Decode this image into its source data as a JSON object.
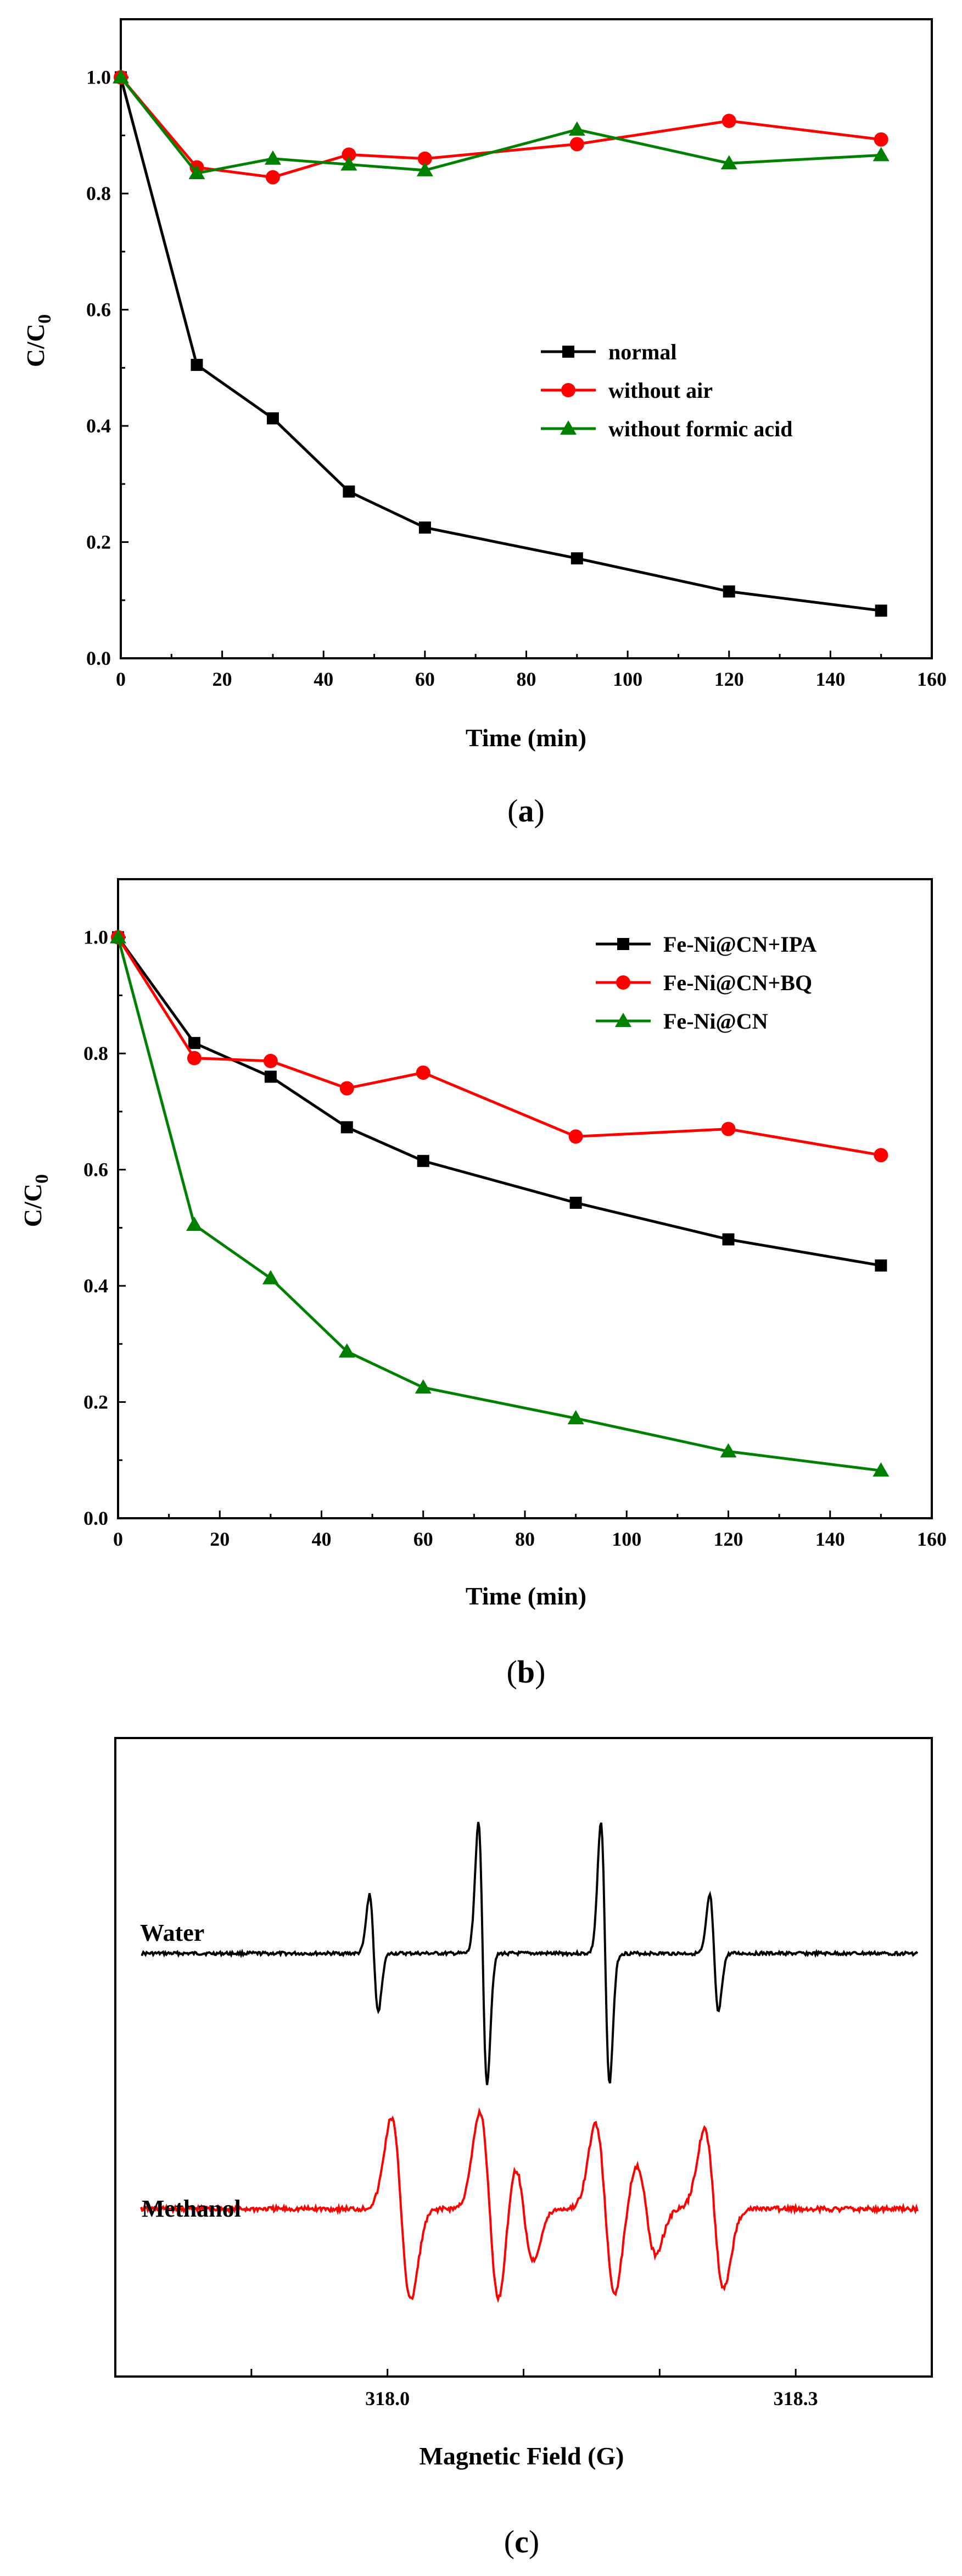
{
  "chart_data": [
    {
      "panel": "a",
      "type": "line",
      "caption": "a",
      "xlabel": "Time (min)",
      "ylabel": "C/C",
      "ylabel_sub": "0",
      "xlim": [
        0,
        160
      ],
      "ylim": [
        0,
        1.1
      ],
      "xticks": [
        0,
        20,
        40,
        60,
        80,
        100,
        120,
        140,
        160
      ],
      "yticks": [
        "0.0",
        "0.2",
        "0.4",
        "0.6",
        "0.8",
        "1.0"
      ],
      "x": [
        0,
        15,
        30,
        45,
        60,
        90,
        120,
        150
      ],
      "legend_position": "center-right",
      "series": [
        {
          "name": "normal",
          "marker": "square",
          "color": "#000000",
          "values": [
            1.0,
            0.505,
            0.413,
            0.287,
            0.225,
            0.172,
            0.115,
            0.082
          ]
        },
        {
          "name": "without air",
          "marker": "circle",
          "color": "#ff0000",
          "values": [
            1.0,
            0.845,
            0.828,
            0.867,
            0.86,
            0.885,
            0.925,
            0.893
          ]
        },
        {
          "name": "without formic acid",
          "marker": "triangle",
          "color": "#008000",
          "values": [
            1.0,
            0.835,
            0.86,
            0.85,
            0.84,
            0.91,
            0.852,
            0.866
          ]
        }
      ]
    },
    {
      "panel": "b",
      "type": "line",
      "caption": "b",
      "xlabel": "Time (min)",
      "ylabel": "C/C",
      "ylabel_sub": "0",
      "xlim": [
        0,
        160
      ],
      "ylim": [
        0,
        1.1
      ],
      "xticks": [
        0,
        20,
        40,
        60,
        80,
        100,
        120,
        140,
        160
      ],
      "yticks": [
        "0.0",
        "0.2",
        "0.4",
        "0.6",
        "0.8",
        "1.0"
      ],
      "x": [
        0,
        15,
        30,
        45,
        60,
        90,
        120,
        150
      ],
      "legend_position": "top-right",
      "series": [
        {
          "name": "Fe-Ni@CN+IPA",
          "marker": "square",
          "color": "#000000",
          "values": [
            1.0,
            0.818,
            0.76,
            0.673,
            0.615,
            0.543,
            0.48,
            0.435
          ]
        },
        {
          "name": "Fe-Ni@CN+BQ",
          "marker": "circle",
          "color": "#ff0000",
          "values": [
            1.0,
            0.792,
            0.787,
            0.74,
            0.767,
            0.657,
            0.67,
            0.625
          ]
        },
        {
          "name": "Fe-Ni@CN",
          "marker": "triangle",
          "color": "#008000",
          "values": [
            1.0,
            0.505,
            0.413,
            0.287,
            0.225,
            0.172,
            0.115,
            0.082
          ]
        }
      ]
    },
    {
      "panel": "c",
      "type": "line",
      "caption": "c",
      "xlabel": "Magnetic Field (G)",
      "ylabel": "",
      "xlim": [
        317.8,
        318.4
      ],
      "xticks": [
        317.9,
        318.0,
        318.1,
        318.2,
        318.3
      ],
      "xtick_labels": [
        "",
        "318.0",
        "",
        "",
        "318.3"
      ],
      "series": [
        {
          "name": "Water",
          "color": "#000000",
          "pattern": "1:2:2:1 quartet",
          "peak_centers": [
            317.99,
            318.07,
            318.16,
            318.24
          ],
          "peak_heights": [
            0.45,
            1.0,
            1.0,
            0.45
          ]
        },
        {
          "name": "Methanol",
          "color": "#ff0000",
          "pattern": "sextet",
          "peak_centers": [
            318.01,
            318.075,
            318.1,
            318.16,
            318.19,
            318.24
          ],
          "peak_heights": [
            0.8,
            0.85,
            0.45,
            0.75,
            0.4,
            0.7
          ]
        }
      ]
    }
  ]
}
